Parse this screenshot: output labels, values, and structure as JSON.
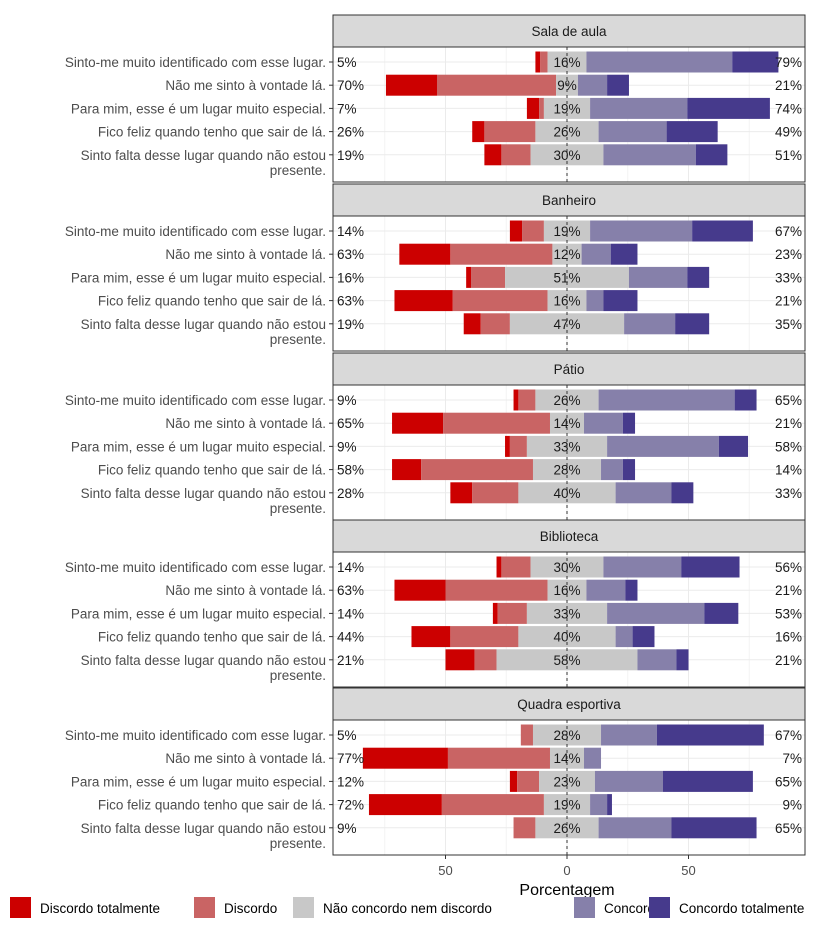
{
  "chart_data": {
    "type": "bar",
    "subtype": "diverging-stacked-horizontal",
    "title": "",
    "xlabel": "Porcentagem",
    "ylabel": "",
    "xlim": [
      -87,
      97
    ],
    "xticks": [
      -50,
      0,
      50
    ],
    "xtick_labels": [
      "50",
      "0",
      "50"
    ],
    "grid": true,
    "legend_position": "bottom",
    "levels": [
      "Discordo totalmente",
      "Discordo",
      "Não concordo nem discordo",
      "Concordo",
      "Concordo totalmente"
    ],
    "colors": [
      "#CC0000",
      "#C96464",
      "#C8C8C8",
      "#8680AA",
      "#463A8C"
    ],
    "items": [
      "Sinto-me muito identificado com esse lugar.",
      "Não me sinto à vontade lá.",
      "Para mim, esse é um lugar muito especial.",
      "Fico feliz quando tenho que sair de lá.",
      "Sinto falta desse lugar quando não estou presente."
    ],
    "item_lines": [
      [
        "Sinto-me muito identificado com esse lugar."
      ],
      [
        "Não me sinto à vontade lá."
      ],
      [
        "Para mim, esse é um lugar muito especial."
      ],
      [
        "Fico feliz quando tenho que sair de lá."
      ],
      [
        "Sinto falta desse lugar quando não estou",
        "presente."
      ]
    ],
    "panels": [
      {
        "name": "Sala de aula",
        "rows": [
          {
            "values": [
              2,
              3,
              16,
              60,
              19
            ],
            "low": "5%",
            "neutral": "16%",
            "high": "79%"
          },
          {
            "values": [
              21,
              49,
              9,
              12,
              9
            ],
            "low": "70%",
            "neutral": "9%",
            "high": "21%"
          },
          {
            "values": [
              5,
              2,
              19,
              40,
              34
            ],
            "low": "7%",
            "neutral": "19%",
            "high": "74%"
          },
          {
            "values": [
              5,
              21,
              26,
              28,
              21
            ],
            "low": "26%",
            "neutral": "26%",
            "high": "49%"
          },
          {
            "values": [
              7,
              12,
              30,
              38,
              13
            ],
            "low": "19%",
            "neutral": "30%",
            "high": "51%"
          }
        ]
      },
      {
        "name": "Banheiro",
        "rows": [
          {
            "values": [
              5,
              9,
              19,
              42,
              25
            ],
            "low": "14%",
            "neutral": "19%",
            "high": "67%"
          },
          {
            "values": [
              21,
              42,
              12,
              12,
              11
            ],
            "low": "63%",
            "neutral": "12%",
            "high": "23%"
          },
          {
            "values": [
              2,
              14,
              51,
              24,
              9
            ],
            "low": "16%",
            "neutral": "51%",
            "high": "33%"
          },
          {
            "values": [
              24,
              39,
              16,
              7,
              14
            ],
            "low": "63%",
            "neutral": "16%",
            "high": "21%"
          },
          {
            "values": [
              7,
              12,
              47,
              21,
              14
            ],
            "low": "19%",
            "neutral": "47%",
            "high": "35%"
          }
        ]
      },
      {
        "name": "Pátio",
        "rows": [
          {
            "values": [
              2,
              7,
              26,
              56,
              9
            ],
            "low": "9%",
            "neutral": "26%",
            "high": "65%"
          },
          {
            "values": [
              21,
              44,
              14,
              16,
              5
            ],
            "low": "65%",
            "neutral": "14%",
            "high": "21%"
          },
          {
            "values": [
              2,
              7,
              33,
              46,
              12
            ],
            "low": "9%",
            "neutral": "33%",
            "high": "58%"
          },
          {
            "values": [
              12,
              46,
              28,
              9,
              5
            ],
            "low": "58%",
            "neutral": "28%",
            "high": "14%"
          },
          {
            "values": [
              9,
              19,
              40,
              23,
              9
            ],
            "low": "28%",
            "neutral": "40%",
            "high": "33%"
          }
        ]
      },
      {
        "name": "Biblioteca",
        "rows": [
          {
            "values": [
              2,
              12,
              30,
              32,
              24
            ],
            "low": "14%",
            "neutral": "30%",
            "high": "56%"
          },
          {
            "values": [
              21,
              42,
              16,
              16,
              5
            ],
            "low": "63%",
            "neutral": "16%",
            "high": "21%"
          },
          {
            "values": [
              2,
              12,
              33,
              40,
              14
            ],
            "low": "14%",
            "neutral": "33%",
            "high": "53%"
          },
          {
            "values": [
              16,
              28,
              40,
              7,
              9
            ],
            "low": "44%",
            "neutral": "40%",
            "high": "16%"
          },
          {
            "values": [
              12,
              9,
              58,
              16,
              5
            ],
            "low": "21%",
            "neutral": "58%",
            "high": "21%"
          }
        ]
      },
      {
        "name": "Quadra esportiva",
        "rows": [
          {
            "values": [
              0,
              5,
              28,
              23,
              44
            ],
            "low": "5%",
            "neutral": "28%",
            "high": "67%"
          },
          {
            "values": [
              35,
              42,
              14,
              7,
              0
            ],
            "low": "77%",
            "neutral": "14%",
            "high": "7%"
          },
          {
            "values": [
              3,
              9,
              23,
              28,
              37
            ],
            "low": "12%",
            "neutral": "23%",
            "high": "65%"
          },
          {
            "values": [
              30,
              42,
              19,
              7,
              2
            ],
            "low": "72%",
            "neutral": "19%",
            "high": "9%"
          },
          {
            "values": [
              0,
              9,
              26,
              30,
              35
            ],
            "low": "9%",
            "neutral": "26%",
            "high": "65%"
          }
        ]
      }
    ]
  }
}
